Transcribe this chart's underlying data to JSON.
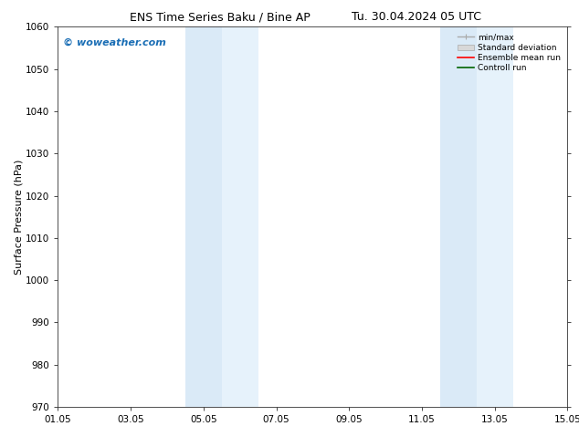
{
  "title_left": "ENS Time Series Baku / Bine AP",
  "title_right": "Tu. 30.04.2024 05 UTC",
  "ylabel": "Surface Pressure (hPa)",
  "ylim": [
    970,
    1060
  ],
  "yticks": [
    970,
    980,
    990,
    1000,
    1010,
    1020,
    1030,
    1040,
    1050,
    1060
  ],
  "xlim_start": 0,
  "xlim_end": 14,
  "xtick_labels": [
    "01.05",
    "03.05",
    "05.05",
    "07.05",
    "09.05",
    "11.05",
    "13.05",
    "15.05"
  ],
  "xtick_positions": [
    0,
    2,
    4,
    6,
    8,
    10,
    12,
    14
  ],
  "shaded_regions": [
    {
      "xstart": 3.5,
      "xend": 4.5,
      "color": "#daeaf7"
    },
    {
      "xstart": 4.5,
      "xend": 5.5,
      "color": "#e6f2fb"
    },
    {
      "xstart": 10.5,
      "xend": 11.5,
      "color": "#daeaf7"
    },
    {
      "xstart": 11.5,
      "xend": 12.5,
      "color": "#e6f2fb"
    }
  ],
  "watermark": "© woweather.com",
  "watermark_color": "#1a6eb5",
  "bg_color": "#ffffff",
  "plot_bg_color": "#ffffff",
  "title_fontsize": 9,
  "tick_fontsize": 7.5,
  "label_fontsize": 8,
  "watermark_fontsize": 8
}
